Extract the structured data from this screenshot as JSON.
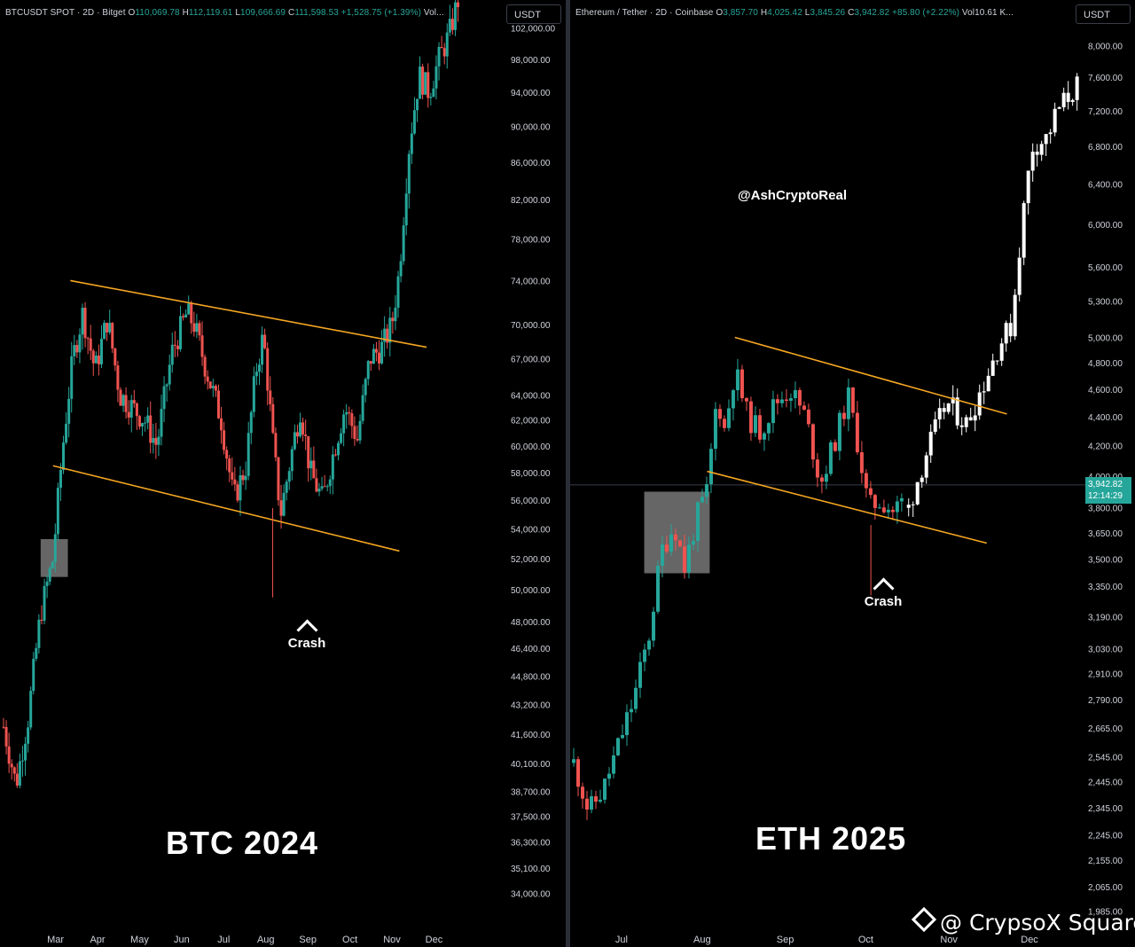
{
  "btc": {
    "header": {
      "symbol": "BTCUSDT SPOT · 2D · Bitget",
      "o_label": "O",
      "o": "110,069.78",
      "h_label": "H",
      "h": "112,119.61",
      "l_label": "L",
      "l": "109,666.69",
      "c_label": "C",
      "c": "111,598.53",
      "change": "+1,528.75 (+1.39%)",
      "vol": "Vol..."
    },
    "currency": "USDT",
    "big_label": "BTC 2024",
    "annotation": "Crash"
  },
  "eth": {
    "header": {
      "symbol": "Ethereum / Tether · 2D · Coinbase",
      "o_label": "O",
      "o": "3,857.70",
      "h_label": "H",
      "h": "4,025.42",
      "l_label": "L",
      "l": "3,845.26",
      "c_label": "C",
      "c": "3,942.82",
      "change": "+85.80 (+2.22%)",
      "vol": "Vol10.61 K..."
    },
    "currency": "USDT",
    "big_label": "ETH 2025",
    "annotation": "Crash",
    "handle": "@AshCryptoReal",
    "price_tag": "3,942.82",
    "countdown": "12:14:29"
  },
  "watermark": "@ CrypsoX Square",
  "colors": {
    "up": "#26a69a",
    "down": "#ef5350",
    "trendline": "#f5a623",
    "projection": "#ffffff",
    "highlight_box": "#888888"
  },
  "chart_data": [
    {
      "type": "candlestick",
      "title": "BTCUSDT SPOT · 2D · Bitget",
      "x_tick_labels": [
        "Mar",
        "Apr",
        "May",
        "Jun",
        "Jul",
        "Aug",
        "Sep",
        "Oct",
        "Nov",
        "Dec"
      ],
      "y_tick_labels": [
        "102,000.00",
        "98,000.00",
        "94,000.00",
        "90,000.00",
        "86,000.00",
        "82,000.00",
        "78,000.00",
        "74,000.00",
        "70,000.00",
        "67,000.00",
        "64,000.00",
        "62,000.00",
        "60,000.00",
        "58,000.00",
        "56,000.00",
        "54,000.00",
        "52,000.00",
        "50,000.00",
        "48,000.00",
        "46,400.00",
        "44,800.00",
        "43,200.00",
        "41,600.00",
        "40,100.00",
        "38,700.00",
        "37,500.00",
        "36,300.00",
        "35,100.00",
        "34,000.00"
      ],
      "y_ticks": [
        102000,
        98000,
        94000,
        90000,
        86000,
        82000,
        78000,
        74000,
        70000,
        67000,
        64000,
        62000,
        60000,
        58000,
        56000,
        54000,
        52000,
        50000,
        48000,
        46400,
        44800,
        43200,
        41600,
        40100,
        38700,
        37500,
        36300,
        35100,
        34000
      ],
      "ylim": [
        33000,
        104000
      ],
      "y_scale": "log",
      "x_ticks": [
        {
          "label": "Mar",
          "t": 0.105
        },
        {
          "label": "Apr",
          "t": 0.19
        },
        {
          "label": "May",
          "t": 0.275
        },
        {
          "label": "Jun",
          "t": 0.36
        },
        {
          "label": "Jul",
          "t": 0.445
        },
        {
          "label": "Aug",
          "t": 0.53
        },
        {
          "label": "Sep",
          "t": 0.615
        },
        {
          "label": "Oct",
          "t": 0.7
        },
        {
          "label": "Nov",
          "t": 0.785
        },
        {
          "label": "Dec",
          "t": 0.87
        }
      ],
      "keypoints": [
        {
          "t": 0,
          "v": 42000
        },
        {
          "t": 0.025,
          "v": 39000
        },
        {
          "t": 0.05,
          "v": 42500
        },
        {
          "t": 0.075,
          "v": 48500
        },
        {
          "t": 0.1,
          "v": 52000
        },
        {
          "t": 0.12,
          "v": 60000
        },
        {
          "t": 0.14,
          "v": 67000
        },
        {
          "t": 0.16,
          "v": 71000
        },
        {
          "t": 0.185,
          "v": 66000
        },
        {
          "t": 0.21,
          "v": 70500
        },
        {
          "t": 0.235,
          "v": 64000
        },
        {
          "t": 0.26,
          "v": 63000
        },
        {
          "t": 0.285,
          "v": 62000
        },
        {
          "t": 0.31,
          "v": 60000
        },
        {
          "t": 0.34,
          "v": 67500
        },
        {
          "t": 0.37,
          "v": 71000
        },
        {
          "t": 0.385,
          "v": 70000
        },
        {
          "t": 0.41,
          "v": 66000
        },
        {
          "t": 0.44,
          "v": 62000
        },
        {
          "t": 0.465,
          "v": 56000
        },
        {
          "t": 0.49,
          "v": 58500
        },
        {
          "t": 0.51,
          "v": 66000
        },
        {
          "t": 0.525,
          "v": 69000
        },
        {
          "t": 0.545,
          "v": 60000
        },
        {
          "t": 0.56,
          "v": 55000
        },
        {
          "t": 0.58,
          "v": 59000
        },
        {
          "t": 0.6,
          "v": 63000
        },
        {
          "t": 0.62,
          "v": 58000
        },
        {
          "t": 0.645,
          "v": 56000
        },
        {
          "t": 0.67,
          "v": 60000
        },
        {
          "t": 0.69,
          "v": 63000
        },
        {
          "t": 0.715,
          "v": 60500
        },
        {
          "t": 0.74,
          "v": 67000
        },
        {
          "t": 0.765,
          "v": 68000
        },
        {
          "t": 0.785,
          "v": 70000
        },
        {
          "t": 0.8,
          "v": 75000
        },
        {
          "t": 0.82,
          "v": 88000
        },
        {
          "t": 0.84,
          "v": 96000
        },
        {
          "t": 0.86,
          "v": 94000
        },
        {
          "t": 0.88,
          "v": 98000
        },
        {
          "t": 0.9,
          "v": 101000
        },
        {
          "t": 0.92,
          "v": 106000
        }
      ],
      "trendlines": [
        {
          "name": "upper",
          "from": {
            "t": 0.135,
            "v": 74000
          },
          "to": {
            "t": 0.855,
            "v": 68000
          }
        },
        {
          "name": "lower",
          "from": {
            "t": 0.1,
            "v": 58500
          },
          "to": {
            "t": 0.8,
            "v": 52500
          }
        }
      ],
      "highlight_box": {
        "t0": 0.075,
        "t1": 0.13,
        "v0": 50800,
        "v1": 53300
      },
      "annotations": [
        {
          "text": "Crash",
          "t": 0.544,
          "v": 49500
        }
      ]
    },
    {
      "type": "candlestick",
      "title": "Ethereum / Tether · 2D · Coinbase",
      "x_tick_labels": [
        "Jul",
        "Aug",
        "Sep",
        "Oct",
        "Nov",
        "Dec"
      ],
      "y_tick_labels": [
        "8,000.00",
        "7,600.00",
        "7,200.00",
        "6,800.00",
        "6,400.00",
        "6,000.00",
        "5,600.00",
        "5,300.00",
        "5,000.00",
        "4,800.00",
        "4,600.00",
        "4,400.00",
        "4,200.00",
        "4,000.00",
        "3,800.00",
        "3,650.00",
        "3,500.00",
        "3,350.00",
        "3,190.00",
        "3,030.00",
        "2,910.00",
        "2,790.00",
        "2,665.00",
        "2,545.00",
        "2,445.00",
        "2,345.00",
        "2,245.00",
        "2,155.00",
        "2,065.00",
        "1,985.00"
      ],
      "y_ticks": [
        8000,
        7600,
        7200,
        6800,
        6400,
        6000,
        5600,
        5300,
        5000,
        4800,
        4600,
        4400,
        4200,
        4000,
        3800,
        3650,
        3500,
        3350,
        3190,
        3030,
        2910,
        2790,
        2665,
        2545,
        2445,
        2345,
        2245,
        2155,
        2065,
        1985
      ],
      "ylim": [
        1950,
        8200
      ],
      "y_scale": "log",
      "last_price": 3942.82,
      "x_ticks": [
        {
          "label": "Jul",
          "t": 0.095
        },
        {
          "label": "Aug",
          "t": 0.255
        },
        {
          "label": "Sep",
          "t": 0.42
        },
        {
          "label": "Oct",
          "t": 0.58
        },
        {
          "label": "Nov",
          "t": 0.745
        },
        {
          "label": "Dec",
          "t": 0.905
        }
      ],
      "keypoints": [
        {
          "t": 0,
          "v": 2520
        },
        {
          "t": 0.03,
          "v": 2330
        },
        {
          "t": 0.06,
          "v": 2420
        },
        {
          "t": 0.09,
          "v": 2600
        },
        {
          "t": 0.12,
          "v": 2800
        },
        {
          "t": 0.15,
          "v": 3100
        },
        {
          "t": 0.175,
          "v": 3550
        },
        {
          "t": 0.2,
          "v": 3700
        },
        {
          "t": 0.22,
          "v": 3450
        },
        {
          "t": 0.245,
          "v": 3750
        },
        {
          "t": 0.265,
          "v": 3900
        },
        {
          "t": 0.285,
          "v": 4550
        },
        {
          "t": 0.3,
          "v": 4300
        },
        {
          "t": 0.32,
          "v": 4750
        },
        {
          "t": 0.345,
          "v": 4400
        },
        {
          "t": 0.37,
          "v": 4300
        },
        {
          "t": 0.4,
          "v": 4500
        },
        {
          "t": 0.43,
          "v": 4600
        },
        {
          "t": 0.46,
          "v": 4400
        },
        {
          "t": 0.49,
          "v": 3950
        },
        {
          "t": 0.52,
          "v": 4250
        },
        {
          "t": 0.545,
          "v": 4550
        },
        {
          "t": 0.565,
          "v": 4200
        },
        {
          "t": 0.585,
          "v": 3800
        },
        {
          "t": 0.61,
          "v": 3850
        },
        {
          "t": 0.635,
          "v": 3780
        },
        {
          "t": 0.655,
          "v": 3850
        }
      ],
      "projection_keypoints": [
        {
          "t": 0.665,
          "v": 3800
        },
        {
          "t": 0.7,
          "v": 4150
        },
        {
          "t": 0.74,
          "v": 4500
        },
        {
          "t": 0.78,
          "v": 4350
        },
        {
          "t": 0.82,
          "v": 4700
        },
        {
          "t": 0.845,
          "v": 4950
        },
        {
          "t": 0.87,
          "v": 5100
        },
        {
          "t": 0.89,
          "v": 6000
        },
        {
          "t": 0.91,
          "v": 6800
        },
        {
          "t": 0.94,
          "v": 6900
        },
        {
          "t": 0.96,
          "v": 7200
        },
        {
          "t": 0.985,
          "v": 7400
        },
        {
          "t": 1.0,
          "v": 7500
        }
      ],
      "trendlines": [
        {
          "name": "upper",
          "from": {
            "t": 0.32,
            "v": 5000
          },
          "to": {
            "t": 0.86,
            "v": 4420
          }
        },
        {
          "name": "lower",
          "from": {
            "t": 0.265,
            "v": 4030
          },
          "to": {
            "t": 0.82,
            "v": 3590
          }
        }
      ],
      "highlight_box": {
        "t0": 0.14,
        "t1": 0.27,
        "v0": 3420,
        "v1": 3900
      },
      "annotations": [
        {
          "text": "Crash",
          "t": 0.59,
          "v": 3300
        }
      ]
    }
  ]
}
